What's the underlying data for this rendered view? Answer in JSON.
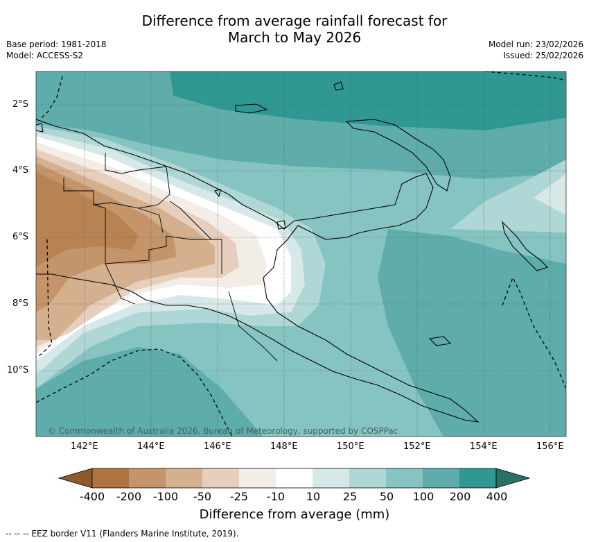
{
  "title": {
    "line1": "Difference from average rainfall forecast for",
    "line2": "March to May 2026"
  },
  "meta": {
    "base_period": "Base period: 1981-2018",
    "model": "Model: ACCESS-S2",
    "model_run": "Model run: 23/02/2026",
    "issued": "Issued: 25/02/2026"
  },
  "axes": {
    "lat_labels": [
      "2°S",
      "4°S",
      "6°S",
      "8°S",
      "10°S"
    ],
    "lon_labels": [
      "142°E",
      "144°E",
      "146°E",
      "148°E",
      "150°E",
      "152°E",
      "154°E",
      "156°E"
    ]
  },
  "copyright": "© Commonwealth of Australia 2026, Bureau of Meteorology, supported by COSPPac",
  "colorbar": {
    "title": "Difference from average (mm)",
    "labels": [
      "-400",
      "-200",
      "-100",
      "-50",
      "-25",
      "-10",
      "10",
      "25",
      "50",
      "100",
      "200",
      "400"
    ],
    "colors": [
      "#8c5a2b",
      "#ad7440",
      "#c4956a",
      "#d4b08e",
      "#e6d0bd",
      "#f2ede6",
      "#ffffff",
      "#d6e9e8",
      "#aed7d6",
      "#86c4c2",
      "#5eadaa",
      "#2f9893",
      "#2a6f6c"
    ]
  },
  "footnote": "--  --  -- EEZ border V11 (Flanders Marine Institute, 2019)."
}
